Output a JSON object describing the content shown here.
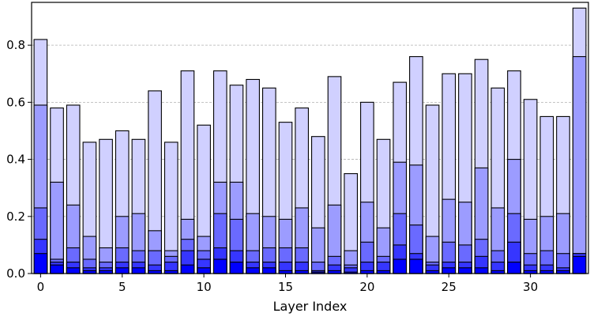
{
  "chart_data": {
    "type": "bar",
    "stacked": true,
    "title": "",
    "xlabel": "Layer Index",
    "ylabel": "",
    "x": [
      0,
      1,
      2,
      3,
      4,
      5,
      6,
      7,
      8,
      9,
      10,
      11,
      12,
      13,
      14,
      15,
      16,
      17,
      18,
      19,
      20,
      21,
      22,
      23,
      24,
      25,
      26,
      27,
      28,
      29,
      30,
      31,
      32,
      33
    ],
    "xlim": [
      -0.55,
      33.55
    ],
    "ylim": [
      0,
      0.95
    ],
    "xticks": [
      0,
      5,
      10,
      15,
      20,
      25,
      30
    ],
    "yticks": [
      0.0,
      0.2,
      0.4,
      0.6,
      0.8
    ],
    "grid": "horizontal dashed",
    "legend": "none",
    "colors": [
      "#0000ff",
      "#3636ff",
      "#6a6aff",
      "#9c9cff",
      "#d0d0ff"
    ],
    "cumulative_levels": [
      [
        0.07,
        0.03,
        0.02,
        0.01,
        0.01,
        0.02,
        0.02,
        0.01,
        0.01,
        0.03,
        0.02,
        0.05,
        0.04,
        0.02,
        0.02,
        0.01,
        0.01,
        0.005,
        0.01,
        0.005,
        0.01,
        0.01,
        0.05,
        0.05,
        0.01,
        0.02,
        0.02,
        0.02,
        0.01,
        0.04,
        0.01,
        0.01,
        0.01,
        0.06
      ],
      [
        0.12,
        0.04,
        0.04,
        0.02,
        0.02,
        0.04,
        0.04,
        0.03,
        0.04,
        0.08,
        0.05,
        0.09,
        0.08,
        0.04,
        0.04,
        0.04,
        0.04,
        0.01,
        0.03,
        0.02,
        0.04,
        0.04,
        0.1,
        0.07,
        0.03,
        0.04,
        0.04,
        0.06,
        0.04,
        0.11,
        0.03,
        0.03,
        0.02,
        0.07
      ],
      [
        0.23,
        0.05,
        0.09,
        0.05,
        0.04,
        0.09,
        0.08,
        0.08,
        0.06,
        0.12,
        0.08,
        0.21,
        0.19,
        0.08,
        0.09,
        0.09,
        0.09,
        0.04,
        0.06,
        0.03,
        0.11,
        0.06,
        0.21,
        0.17,
        0.04,
        0.11,
        0.1,
        0.12,
        0.08,
        0.21,
        0.07,
        0.08,
        0.07,
        0.07
      ],
      [
        0.59,
        0.32,
        0.24,
        0.13,
        0.09,
        0.2,
        0.21,
        0.15,
        0.08,
        0.19,
        0.13,
        0.32,
        0.32,
        0.21,
        0.2,
        0.19,
        0.23,
        0.16,
        0.24,
        0.08,
        0.25,
        0.16,
        0.39,
        0.38,
        0.13,
        0.26,
        0.25,
        0.37,
        0.23,
        0.4,
        0.19,
        0.2,
        0.21,
        0.76
      ],
      [
        0.82,
        0.58,
        0.59,
        0.46,
        0.47,
        0.5,
        0.47,
        0.64,
        0.46,
        0.71,
        0.52,
        0.71,
        0.66,
        0.68,
        0.65,
        0.53,
        0.58,
        0.48,
        0.69,
        0.35,
        0.6,
        0.47,
        0.67,
        0.76,
        0.59,
        0.7,
        0.7,
        0.75,
        0.65,
        0.71,
        0.61,
        0.55,
        0.55,
        0.93
      ]
    ]
  }
}
